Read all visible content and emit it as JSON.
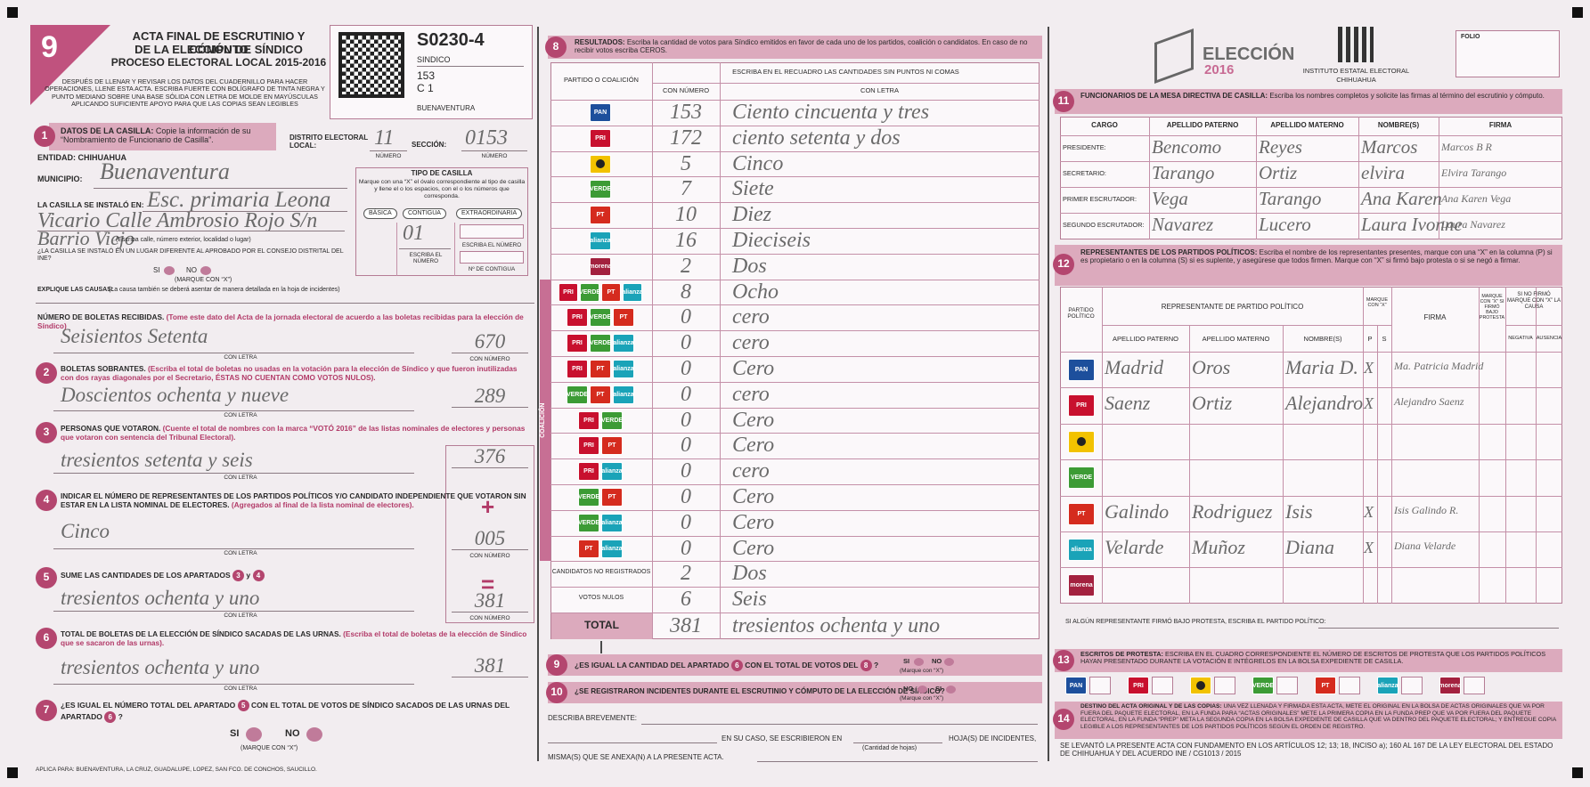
{
  "header": {
    "number": "9",
    "title": [
      "ACTA FINAL DE ESCRUTINIO Y CÓMPUTO",
      "DE LA ELECCIÓN DE SÍNDICO",
      "PROCESO ELECTORAL LOCAL 2015-2016"
    ],
    "instructions": "DESPUÉS DE LLENAR Y REVISAR LOS DATOS DEL CUADERNILLO PARA HACER OPERACIONES, LLENE ESTA ACTA. ESCRIBA FUERTE CON BOLÍGRAFO DE TINTA NEGRA Y PUNTO MEDIANO SOBRE UNA BASE SÓLIDA CON LETRA DE MOLDE EN MAYÚSCULAS APLICANDO SUFICIENTE APOYO PARA QUE LAS COPIAS SEAN LEGIBLES",
    "label": {
      "code": "S0230-4",
      "election": "SINDICO",
      "section": "153",
      "casilla": "C 1",
      "municipality": "BUENAVENTURA"
    },
    "logo": {
      "name": "ELECCIÓN",
      "year": "2016",
      "institute": "INSTITUTO ESTATAL ELECTORAL",
      "state": "CHIHUAHUA"
    },
    "folio": "FOLIO"
  },
  "casilla": {
    "number": "1",
    "title": "DATOS DE LA CASILLA:",
    "note": "Copie la información de su “Nombramiento de Funcionario de Casilla”.",
    "district_label": "DISTRITO ELECTORAL LOCAL:",
    "district": "11",
    "section_label": "SECCIÓN:",
    "section": "0153",
    "number_caption": "NÚMERO",
    "entity": "ENTIDAD: CHIHUAHUA",
    "municipality_label": "MUNICIPIO:",
    "municipality": "Buenaventura",
    "location_label": "LA CASILLA SE INSTALÓ EN:",
    "location": [
      "Esc. primaria Leona",
      "Vicario Calle Ambrosio Rojo S/n",
      "Barrio Viejo"
    ],
    "location_caption": "(Escriba calle, número exterior, localidad o lugar)",
    "moved_question": "¿LA CASILLA SE INSTALÓ EN UN LUGAR DIFERENTE AL APROBADO POR EL CONSEJO DISTRITAL DEL INE?",
    "yes": "SI",
    "no": "NO",
    "mark": "(MARQUE CON “X”)",
    "causes": "EXPLIQUE LAS CAUSAS:",
    "causes_note": "(La causa también se deberá asentar de manera detallada en la hoja de incidentes)",
    "type_title": "TIPO DE CASILLA",
    "type_note": "Marque con una “X” el óvalo correspondiente al tipo de casilla y llene el o los espacios, con el o los números que corresponda.",
    "types": [
      "BÁSICA",
      "CONTIGUA",
      "EXTRAORDINARIA"
    ],
    "contigua": "01",
    "write_number": "ESCRIBA EL NÚMERO",
    "contigua_caption": "Nº DE CONTIGUA"
  },
  "counts": {
    "letter_caption": "CON LETRA",
    "number_caption": "CON NÚMERO",
    "plus": "+",
    "equals": "=",
    "items": [
      {
        "title": "NÚMERO DE BOLETAS RECIBIDAS.",
        "note": "(Tome este dato del Acta de la jornada electoral de acuerdo a las boletas recibidas para la elección de Síndico)",
        "letters": "Seisientos Setenta",
        "value": 670
      },
      {
        "badge": "2",
        "title": "BOLETAS SOBRANTES.",
        "note": "(Escriba el total de boletas no usadas en la votación para la elección de Síndico y que fueron inutilizadas con dos rayas diagonales por el Secretario, ÉSTAS NO CUENTAN COMO VOTOS NULOS).",
        "letters": "Doscientos ochenta y nueve",
        "value": 289
      },
      {
        "badge": "3",
        "title": "PERSONAS QUE VOTARON.",
        "note": "(Cuente el total de nombres con la marca “VOTÓ 2016” de las listas nominales de electores y personas que votaron con sentencia del Tribunal Electoral).",
        "letters": "tresientos setenta y seis",
        "value": 376
      },
      {
        "badge": "4",
        "title": "INDICAR EL NÚMERO DE REPRESENTANTES DE LOS PARTIDOS POLÍTICOS Y/O CANDIDATO INDEPENDIENTE QUE VOTARON SIN ESTAR EN LA LISTA NOMINAL DE ELECTORES.",
        "note": "(Agregados al final de la lista nominal de electores).",
        "letters": "Cinco",
        "value": "005"
      },
      {
        "badge": "5",
        "title": "SUME LAS CANTIDADES DE LOS APARTADOS",
        "refs": [
          "3",
          "4"
        ],
        "joiner": "y",
        "letters": "tresientos ochenta y uno",
        "value": 381
      },
      {
        "badge": "6",
        "title": "TOTAL DE BOLETAS DE LA ELECCIÓN DE SÍNDICO SACADAS DE LAS URNAS.",
        "note": "(Escriba el total de boletas de la elección de Síndico que se sacaron de las urnas).",
        "letters": "tresientos ochenta y uno",
        "value": 381
      }
    ]
  },
  "q7": {
    "badge": "7",
    "parts": [
      "¿ES IGUAL EL NÚMERO TOTAL DEL APARTADO",
      "5",
      "CON EL TOTAL DE VOTOS DE SÍNDICO SACADOS DE LAS URNAS DEL APARTADO",
      "6",
      "?"
    ],
    "yes": "SI",
    "no": "NO",
    "mark": "(MARQUE CON “X”)"
  },
  "footer": "APLICA PARA: BUENAVENTURA, LA CRUZ, GUADALUPE, LOPEZ, SAN FCO. DE CONCHOS, SAUCILLO.",
  "results": {
    "badge": "8",
    "title": "RESULTADOS:",
    "note": "Escriba la cantidad de votos para Síndico emitidos en favor de cada uno de los partidos, coalición o candidatos. En caso de no recibir votos escriba CEROS.",
    "party_header": "PARTIDO O COALICIÓN",
    "write_header": "ESCRIBA EN EL RECUADRO LAS CANTIDADES SIN PUNTOS NI COMAS",
    "number_header": "CON NÚMERO",
    "letter_header": "CON LETRA",
    "coalition_label": "COALICIÓN",
    "rows": [
      {
        "logos": [
          {
            "label": "PAN",
            "color": "#1d4f9c"
          }
        ],
        "votes": 153,
        "letters": "Ciento cincuenta y tres"
      },
      {
        "logos": [
          {
            "label": "PRI",
            "color": "#c8102e"
          }
        ],
        "votes": 172,
        "letters": "ciento setenta y dos"
      },
      {
        "logos": [
          {
            "label": null,
            "color": "#f2c200"
          }
        ],
        "votes": 5,
        "letters": "Cinco"
      },
      {
        "logos": [
          {
            "label": "VERDE",
            "color": "#3c9b35"
          }
        ],
        "votes": 7,
        "letters": "Siete"
      },
      {
        "logos": [
          {
            "label": "PT",
            "color": "#d52b1e"
          }
        ],
        "votes": 10,
        "letters": "Diez"
      },
      {
        "logos": [
          {
            "label": "alianza",
            "color": "#1aa3b8"
          }
        ],
        "votes": 16,
        "letters": "Dieciseis"
      },
      {
        "logos": [
          {
            "label": "morena",
            "color": "#a3213f"
          }
        ],
        "votes": 2,
        "letters": "Dos"
      },
      {
        "logos": [
          {
            "label": "PRI",
            "color": "#c8102e"
          },
          {
            "label": "VERDE",
            "color": "#3c9b35"
          },
          {
            "label": "PT",
            "color": "#d52b1e"
          },
          {
            "label": "alianza",
            "color": "#1aa3b8"
          }
        ],
        "votes": 8,
        "letters": "Ocho"
      },
      {
        "logos": [
          {
            "label": "PRI",
            "color": "#c8102e"
          },
          {
            "label": "VERDE",
            "color": "#3c9b35"
          },
          {
            "label": "PT",
            "color": "#d52b1e"
          }
        ],
        "votes": 0,
        "letters": "cero"
      },
      {
        "logos": [
          {
            "label": "PRI",
            "color": "#c8102e"
          },
          {
            "label": "VERDE",
            "color": "#3c9b35"
          },
          {
            "label": "alianza",
            "color": "#1aa3b8"
          }
        ],
        "votes": 0,
        "letters": "cero"
      },
      {
        "logos": [
          {
            "label": "PRI",
            "color": "#c8102e"
          },
          {
            "label": "PT",
            "color": "#d52b1e"
          },
          {
            "label": "alianza",
            "color": "#1aa3b8"
          }
        ],
        "votes": 0,
        "letters": "Cero"
      },
      {
        "logos": [
          {
            "label": "VERDE",
            "color": "#3c9b35"
          },
          {
            "label": "PT",
            "color": "#d52b1e"
          },
          {
            "label": "alianza",
            "color": "#1aa3b8"
          }
        ],
        "votes": 0,
        "letters": "cero"
      },
      {
        "logos": [
          {
            "label": "PRI",
            "color": "#c8102e"
          },
          {
            "label": "VERDE",
            "color": "#3c9b35"
          }
        ],
        "votes": 0,
        "letters": "Cero"
      },
      {
        "logos": [
          {
            "label": "PRI",
            "color": "#c8102e"
          },
          {
            "label": "PT",
            "color": "#d52b1e"
          }
        ],
        "votes": 0,
        "letters": "Cero"
      },
      {
        "logos": [
          {
            "label": "PRI",
            "color": "#c8102e"
          },
          {
            "label": "alianza",
            "color": "#1aa3b8"
          }
        ],
        "votes": 0,
        "letters": "cero"
      },
      {
        "logos": [
          {
            "label": "VERDE",
            "color": "#3c9b35"
          },
          {
            "label": "PT",
            "color": "#d52b1e"
          }
        ],
        "votes": 0,
        "letters": "Cero"
      },
      {
        "logos": [
          {
            "label": "VERDE",
            "color": "#3c9b35"
          },
          {
            "label": "alianza",
            "color": "#1aa3b8"
          }
        ],
        "votes": 0,
        "letters": "Cero"
      },
      {
        "logos": [
          {
            "label": "PT",
            "color": "#d52b1e"
          },
          {
            "label": "alianza",
            "color": "#1aa3b8"
          }
        ],
        "votes": 0,
        "letters": "Cero"
      },
      {
        "label": "CANDIDATOS NO REGISTRADOS",
        "votes": 2,
        "letters": "Dos"
      },
      {
        "label": "VOTOS NULOS",
        "votes": 6,
        "letters": "Seis"
      }
    ],
    "total": {
      "label": "TOTAL",
      "votes": 381,
      "letters": "tresientos ochenta y uno"
    }
  },
  "q9": {
    "badge": "9",
    "parts": [
      "¿ES IGUAL LA CANTIDAD DEL APARTADO",
      "6",
      "CON EL TOTAL DE VOTOS DEL",
      "8",
      "?"
    ],
    "yes": "SI",
    "no": "NO",
    "mark": "(Marque con “X”)"
  },
  "q10": {
    "badge": "10",
    "text": "¿SE REGISTRARON INCIDENTES DURANTE EL ESCRUTINIO Y CÓMPUTO DE LA ELECCIÓN DE SÍNDICO?",
    "no": "NO",
    "yes": "SI",
    "mark": "(Marque con “X”)"
  },
  "incidents": {
    "describe": "DESCRIBA BREVEMENTE:",
    "written_in": "EN SU CASO, SE ESCRIBIERON EN",
    "sheets": "HOJA(S) DE INCIDENTES,",
    "sheets_caption": "(Cantidad de hojas)",
    "annexed": "MISMA(S) QUE SE ANEXA(N) A LA PRESENTE ACTA."
  },
  "officials": {
    "badge": "11",
    "title": "FUNCIONARIOS DE LA MESA DIRECTIVA DE CASILLA:",
    "note": "Escriba los nombres completos y solicite las firmas al término del escrutinio y cómputo.",
    "columns": [
      "CARGO",
      "APELLIDO PATERNO",
      "APELLIDO MATERNO",
      "NOMBRE(S)",
      "FIRMA"
    ],
    "rows": [
      [
        "PRESIDENTE:",
        "Bencomo",
        "Reyes",
        "Marcos",
        "Marcos B R"
      ],
      [
        "SECRETARIO:",
        "Tarango",
        "Ortiz",
        "elvira",
        "Elvira Tarango"
      ],
      [
        "PRIMER ESCRUTADOR:",
        "Vega",
        "Tarango",
        "Ana Karen",
        "Ana Karen Vega"
      ],
      [
        "SEGUNDO ESCRUTADOR:",
        "Navarez",
        "Lucero",
        "Laura Ivonne",
        "Laura Navarez"
      ]
    ]
  },
  "reps": {
    "badge": "12",
    "title": "REPRESENTANTES DE LOS PARTIDOS POLÍTICOS:",
    "note": "Escriba el nombre de los representantes presentes, marque con una “X” en la columna (P) si es propietario o en la columna (S) si es suplente, y asegúrese que todos firmen. Marque con “X” si firmó bajo protesta o si se negó a firmar.",
    "headers": {
      "party": "PARTIDO POLÍTICO",
      "rep": "REPRESENTANTE DE PARTIDO POLÍTICO",
      "mark": "MARQUE CON “X”",
      "signature": "FIRMA",
      "protest": "MARQUE CON “X” SI FIRMÓ BAJO PROTESTA",
      "refused": "SI NO FIRMÓ MARQUE CON “X” LA CAUSA",
      "paternal": "APELLIDO PATERNO",
      "maternal": "APELLIDO MATERNO",
      "names": "NOMBRE(S)",
      "p": "P",
      "s": "S",
      "negative": "NEGATIVA",
      "absence": "AUSENCIA"
    },
    "rows": [
      {
        "logo": {
          "label": "PAN",
          "color": "#1d4f9c"
        },
        "paternal": "Madrid",
        "maternal": "Oros",
        "names": "Maria D.",
        "p": "X",
        "signature": "Ma. Patricia Madrid"
      },
      {
        "logo": {
          "label": "PRI",
          "color": "#c8102e"
        },
        "paternal": "Saenz",
        "maternal": "Ortiz",
        "names": "Alejandro",
        "p": "X",
        "signature": "Alejandro Saenz"
      },
      {
        "logo": {
          "label": null,
          "color": "#f2c200"
        }
      },
      {
        "logo": {
          "label": "VERDE",
          "color": "#3c9b35"
        }
      },
      {
        "logo": {
          "label": "PT",
          "color": "#d52b1e"
        },
        "paternal": "Galindo",
        "maternal": "Rodriguez",
        "names": "Isis",
        "p": "X",
        "signature": "Isis Galindo R."
      },
      {
        "logo": {
          "label": "alianza",
          "color": "#1aa3b8"
        },
        "paternal": "Velarde",
        "maternal": "Muñoz",
        "names": "Diana",
        "p": "X",
        "signature": "Diana Velarde"
      },
      {
        "logo": {
          "label": "morena",
          "color": "#a3213f"
        }
      }
    ],
    "protest_party": "SI ALGÚN REPRESENTANTE FIRMÓ BAJO PROTESTA, ESCRIBA EL PARTIDO POLÍTICO:"
  },
  "protests": {
    "badge": "13",
    "title": "ESCRITOS DE PROTESTA:",
    "note": "ESCRIBA EN EL CUADRO CORRESPONDIENTE EL NÚMERO DE ESCRITOS DE PROTESTA QUE LOS PARTIDOS POLÍTICOS HAYAN PRESENTADO DURANTE LA VOTACIÓN E INTÉGRELOS EN LA BOLSA EXPEDIENTE DE CASILLA.",
    "logos": [
      {
        "label": "PAN",
        "color": "#1d4f9c"
      },
      {
        "label": "PRI",
        "color": "#c8102e"
      },
      {
        "label": null,
        "color": "#f2c200"
      },
      {
        "label": "VERDE",
        "color": "#3c9b35"
      },
      {
        "label": "PT",
        "color": "#d52b1e"
      },
      {
        "label": "alianza",
        "color": "#1aa3b8"
      },
      {
        "label": "morena",
        "color": "#a3213f"
      }
    ]
  },
  "destination": {
    "badge": "14",
    "title": "DESTINO DEL ACTA ORIGINAL Y DE LAS COPIAS:",
    "note": "UNA VEZ LLENADA Y FIRMADA ESTA ACTA, METE EL ORIGINAL EN LA BOLSA DE ACTAS ORIGINALES QUE VA POR FUERA DEL PAQUETE ELECTORAL, EN LA FUNDA PARA “ACTAS ORIGINALES” METE LA PRIMERA COPIA EN LA FUNDA PREP QUE VA POR FUERA DEL PAQUETE ELECTORAL, EN LA FUNDA “PREP” META LA SEGUNDA COPIA EN LA BOLSA EXPEDIENTE DE CASILLA QUE VA DENTRO DEL PAQUETE ELECTORAL; Y ENTREGUE COPIA LEGIBLE A LOS REPRESENTANTES DE LOS PARTIDOS POLÍTICOS SEGÚN EL ORDEN DE REGISTRO."
  },
  "legal": "SE LEVANTÓ LA PRESENTE ACTA CON FUNDAMENTO EN LOS ARTÍCULOS 12; 13; 18, INCISO a); 160 AL 167 DE LA LEY ELECTORAL DEL ESTADO DE CHIHUAHUA Y DEL ACUERDO INE / CG1013 / 2015"
}
